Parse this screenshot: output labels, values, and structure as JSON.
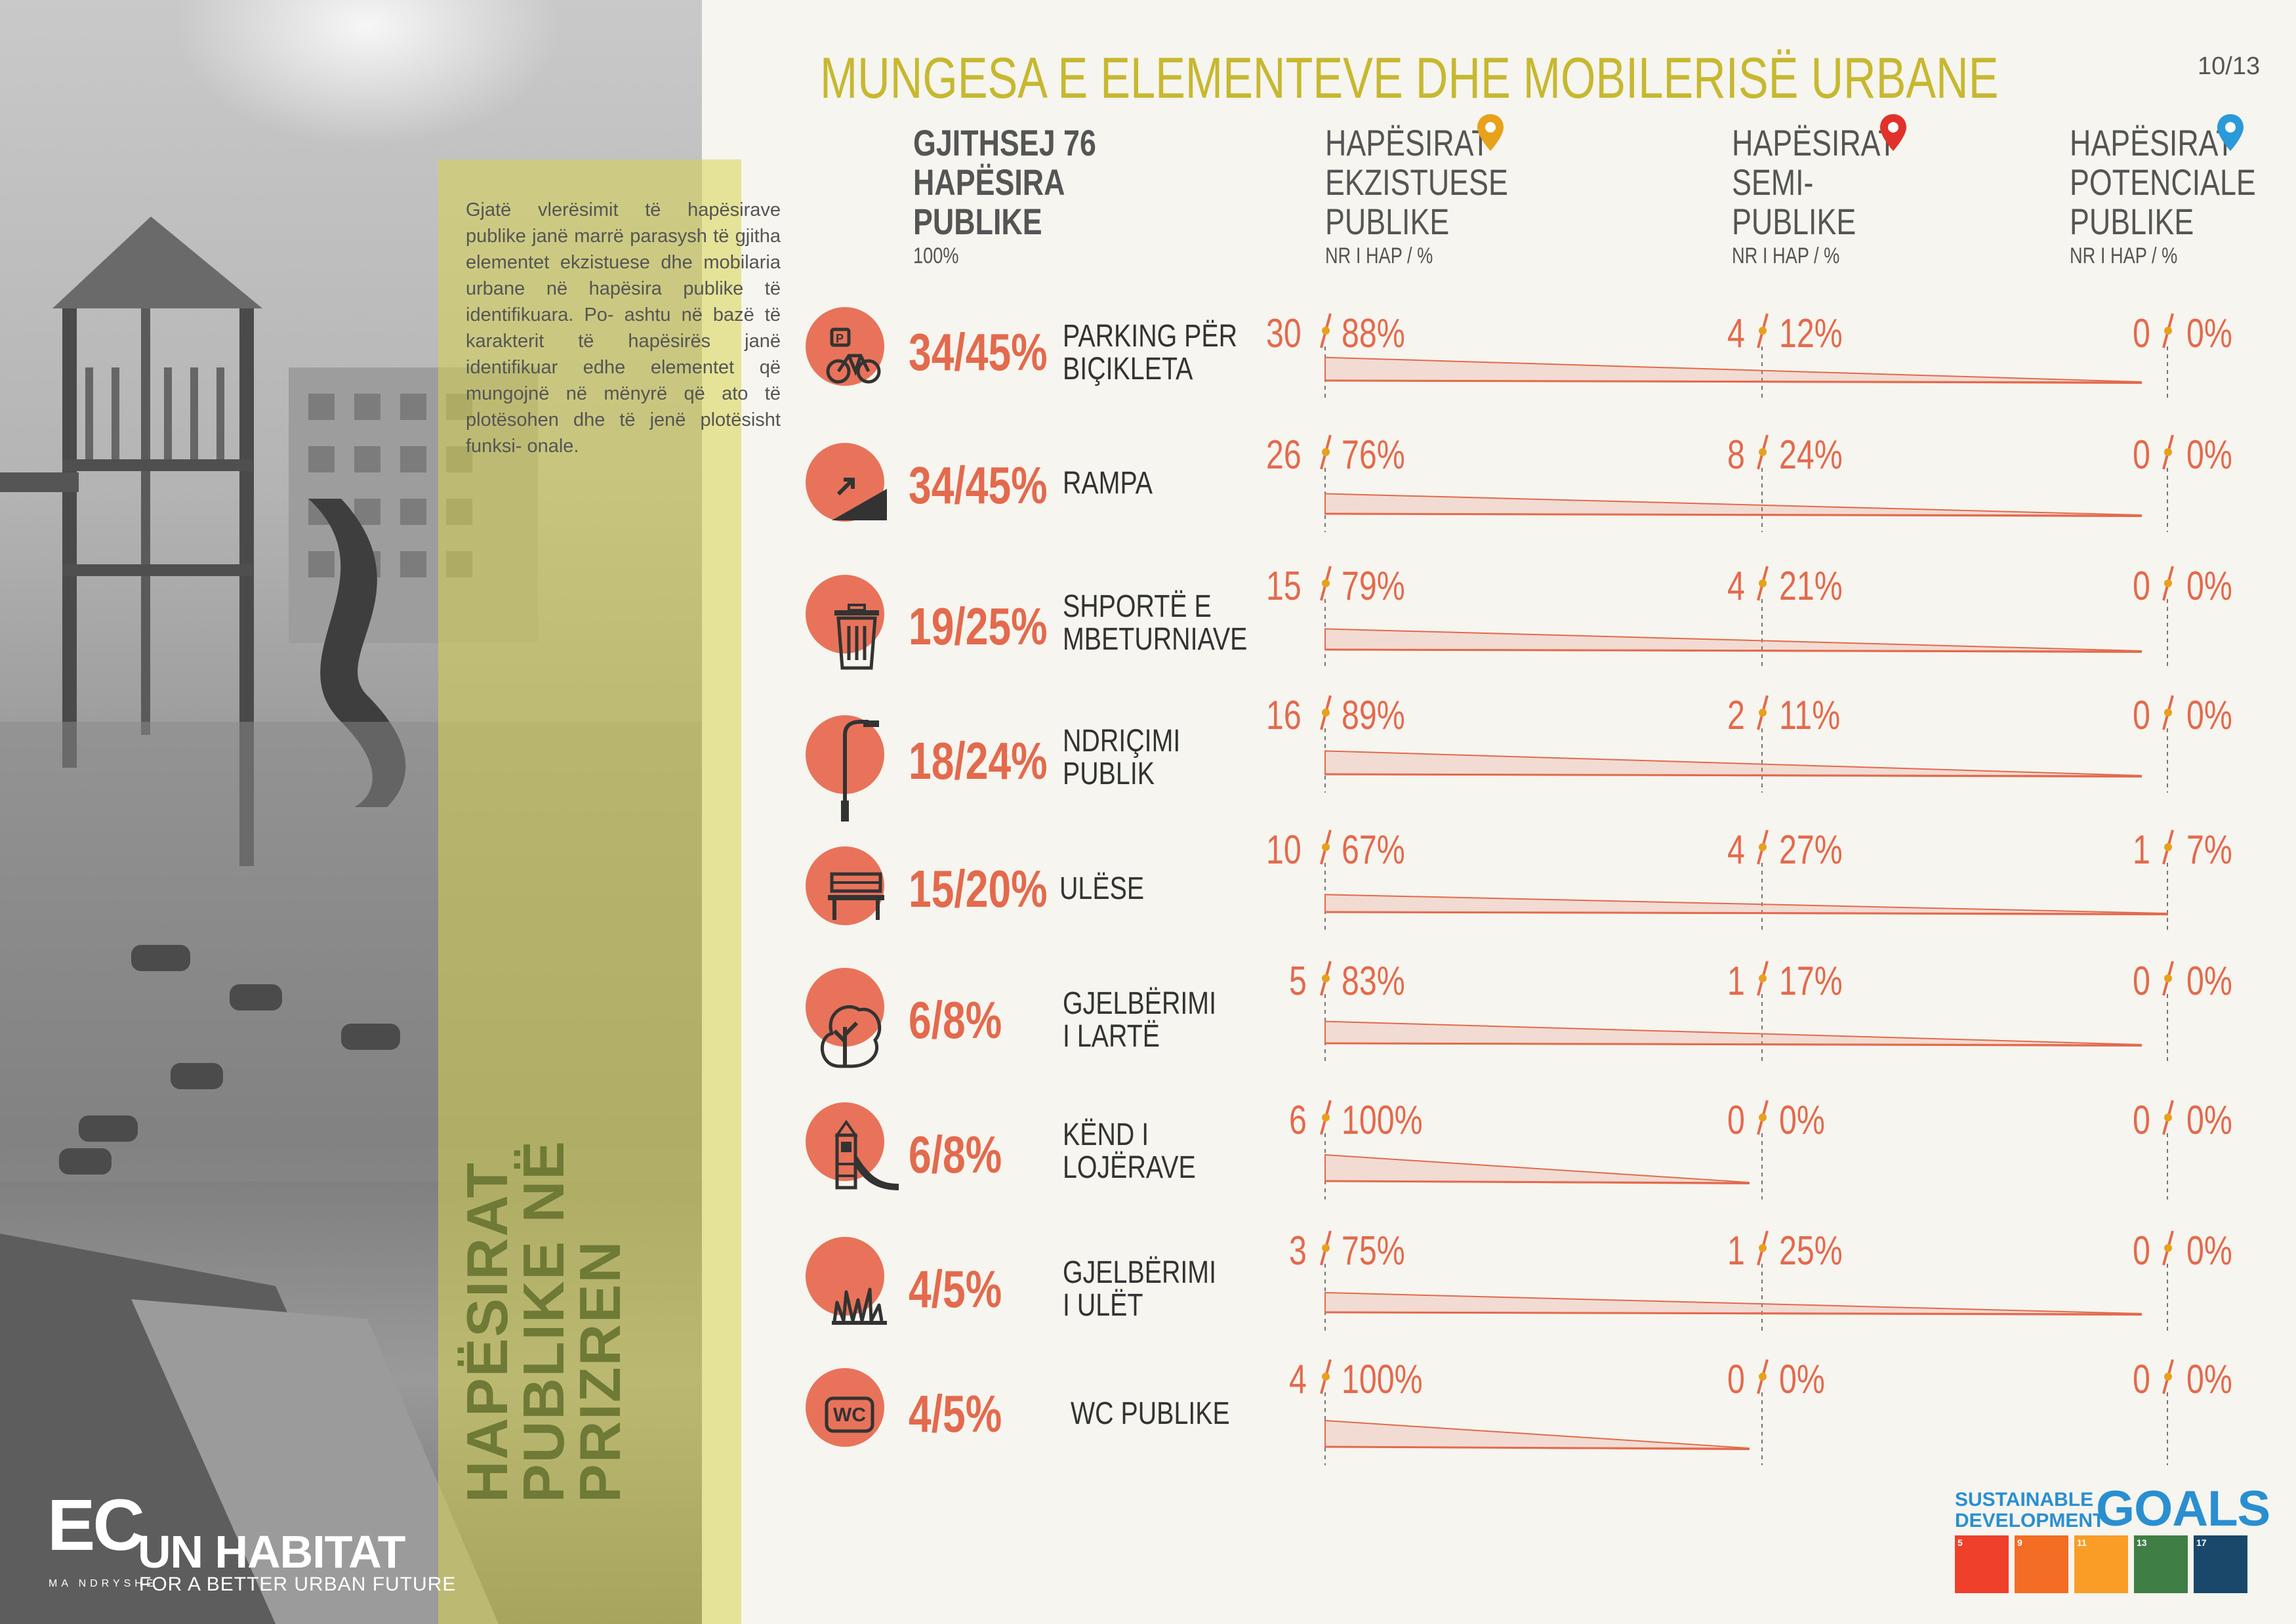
{
  "page": {
    "title": "MUNGESA E ELEMENTEVE DHE MOBILERISË URBANE",
    "page_number": "10/13"
  },
  "sidebar": {
    "intro": "Gjatë vlerësimit të hapësirave publike janë marrë parasysh të gjitha elementet ekzistuese dhe mobilaria urbane në hapësira publike të identifikuara. Po- ashtu në bazë të karakterit të hapësirës janë identifikuar edhe elementet që mungojnë në mënyrë që ato të plotësohen dhe të jenë plotësisht funksi- onale.",
    "vertical_title": [
      "HAPËSIRAT",
      "PUBLIKE NË",
      "PRIZREN"
    ],
    "logo_ec": "EC",
    "logo_ec_sub": "MA NDRYSHE",
    "logo_un": "UN HABITAT",
    "logo_un_sub": "FOR A BETTER URBAN FUTURE"
  },
  "headers": {
    "total": [
      "GJITHSEJ 76",
      "HAPËSIRA",
      "PUBLIKE"
    ],
    "total_sub": "100%",
    "existing": [
      "HAPËSIRAT",
      "EKZISTUESE",
      "PUBLIKE"
    ],
    "semi": [
      "HAPËSIRAT",
      "SEMI-",
      "PUBLIKE"
    ],
    "potential": [
      "HAPËSIRAT",
      "POTENCIALE",
      "PUBLIKE"
    ],
    "unit": "NR I HAP / %",
    "pin_colors": [
      "#e8a11a",
      "#e0322b",
      "#2a9ad8"
    ]
  },
  "rows": [
    {
      "stat": "34/45%",
      "label": [
        "PARKING PËR",
        "BIÇIKLETA"
      ],
      "icon": "bicycle-parking-icon",
      "ex_n": "30",
      "ex_p": "88%",
      "semi_n": "4",
      "semi_p": "12%",
      "pot_n": "0",
      "pot_p": "0%",
      "values": [
        30,
        4,
        0
      ]
    },
    {
      "stat": "34/45%",
      "label": [
        "RAMPA"
      ],
      "icon": "ramp-icon",
      "ex_n": "26",
      "ex_p": "76%",
      "semi_n": "8",
      "semi_p": "24%",
      "pot_n": "0",
      "pot_p": "0%",
      "values": [
        26,
        8,
        0
      ]
    },
    {
      "stat": "19/25%",
      "label": [
        "SHPORTË E",
        "MBETURNIAVE"
      ],
      "icon": "trash-bin-icon",
      "ex_n": "15",
      "ex_p": "79%",
      "semi_n": "4",
      "semi_p": "21%",
      "pot_n": "0",
      "pot_p": "0%",
      "values": [
        15,
        4,
        0
      ]
    },
    {
      "stat": "18/24%",
      "label": [
        "NDRIÇIMI",
        "PUBLIK"
      ],
      "icon": "street-lamp-icon",
      "ex_n": "16",
      "ex_p": "89%",
      "semi_n": "2",
      "semi_p": "11%",
      "pot_n": "0",
      "pot_p": "0%",
      "values": [
        16,
        2,
        0
      ]
    },
    {
      "stat": "15/20%",
      "label": [
        "ULËSE"
      ],
      "icon": "bench-icon",
      "ex_n": "10",
      "ex_p": "67%",
      "semi_n": "4",
      "semi_p": "27%",
      "pot_n": "1",
      "pot_p": "7%",
      "values": [
        10,
        4,
        1
      ]
    },
    {
      "stat": "6/8%",
      "label": [
        "GJELBËRIMI",
        "I LARTË"
      ],
      "icon": "tree-icon",
      "ex_n": "5",
      "ex_p": "83%",
      "semi_n": "1",
      "semi_p": "17%",
      "pot_n": "0",
      "pot_p": "0%",
      "values": [
        5,
        1,
        0
      ]
    },
    {
      "stat": "6/8%",
      "label": [
        "KËND I",
        "LOJËRAVE"
      ],
      "icon": "playground-slide-icon",
      "ex_n": "6",
      "ex_p": "100%",
      "semi_n": "0",
      "semi_p": "0%",
      "pot_n": "0",
      "pot_p": "0%",
      "values": [
        6,
        0,
        0
      ]
    },
    {
      "stat": "4/5%",
      "label": [
        "GJELBËRIMI",
        "I ULËT"
      ],
      "icon": "grass-icon",
      "ex_n": "3",
      "ex_p": "75%",
      "semi_n": "1",
      "semi_p": "25%",
      "pot_n": "0",
      "pot_p": "0%",
      "values": [
        3,
        1,
        0
      ]
    },
    {
      "stat": "4/5%",
      "label": [
        "WC PUBLIKE"
      ],
      "icon": "wc-icon",
      "ex_n": "4",
      "ex_p": "100%",
      "semi_n": "0",
      "semi_p": "0%",
      "pot_n": "0",
      "pot_p": "0%",
      "values": [
        4,
        0,
        0
      ]
    }
  ],
  "sdg": {
    "line1": "SUSTAINABLE",
    "line2": "DEVELOPMENT",
    "goals": "GOALS",
    "tiles": [
      {
        "label": "5",
        "color": "#ef402b"
      },
      {
        "label": "9",
        "color": "#f36d25"
      },
      {
        "label": "11",
        "color": "#f99d26"
      },
      {
        "label": "13",
        "color": "#3f7e44"
      },
      {
        "label": "17",
        "color": "#19486a"
      }
    ]
  },
  "colors": {
    "accent": "#e36a4d",
    "title": "#c7b830",
    "band": "#d7d450",
    "vertical_title": "#6e7a35"
  }
}
